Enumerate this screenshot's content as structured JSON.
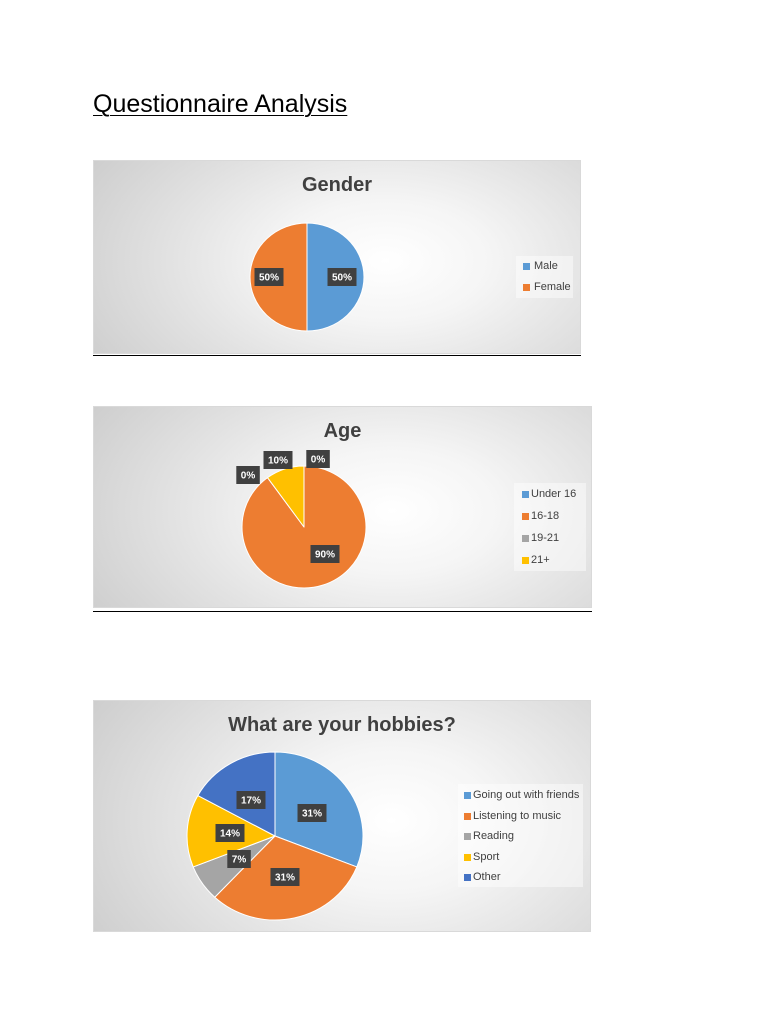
{
  "document": {
    "title": "Questionnaire Analysis"
  },
  "chart_data": [
    {
      "type": "pie",
      "title": "Gender",
      "categories": [
        "Male",
        "Female"
      ],
      "values": [
        50,
        50
      ],
      "data_labels": [
        "50%",
        "50%"
      ],
      "colors": [
        "#5B9BD5",
        "#ED7D31"
      ],
      "legend_position": "right"
    },
    {
      "type": "pie",
      "title": "Age",
      "categories": [
        "Under 16",
        "16-18",
        "19-21",
        "21+"
      ],
      "values": [
        0,
        90,
        0,
        10
      ],
      "data_labels": [
        "0%",
        "90%",
        "0%",
        "10%"
      ],
      "colors": [
        "#5B9BD5",
        "#ED7D31",
        "#A5A5A5",
        "#FFC000"
      ],
      "legend_position": "right"
    },
    {
      "type": "pie",
      "title": "What are your hobbies?",
      "categories": [
        "Going out with friends",
        "Listening to music",
        "Reading",
        "Sport",
        "Other"
      ],
      "values": [
        31,
        31,
        7,
        14,
        17
      ],
      "data_labels": [
        "31%",
        "31%",
        "7%",
        "14%",
        "17%"
      ],
      "colors": [
        "#5B9BD5",
        "#ED7D31",
        "#A5A5A5",
        "#FFC000",
        "#4472C4"
      ],
      "legend_position": "right"
    }
  ]
}
